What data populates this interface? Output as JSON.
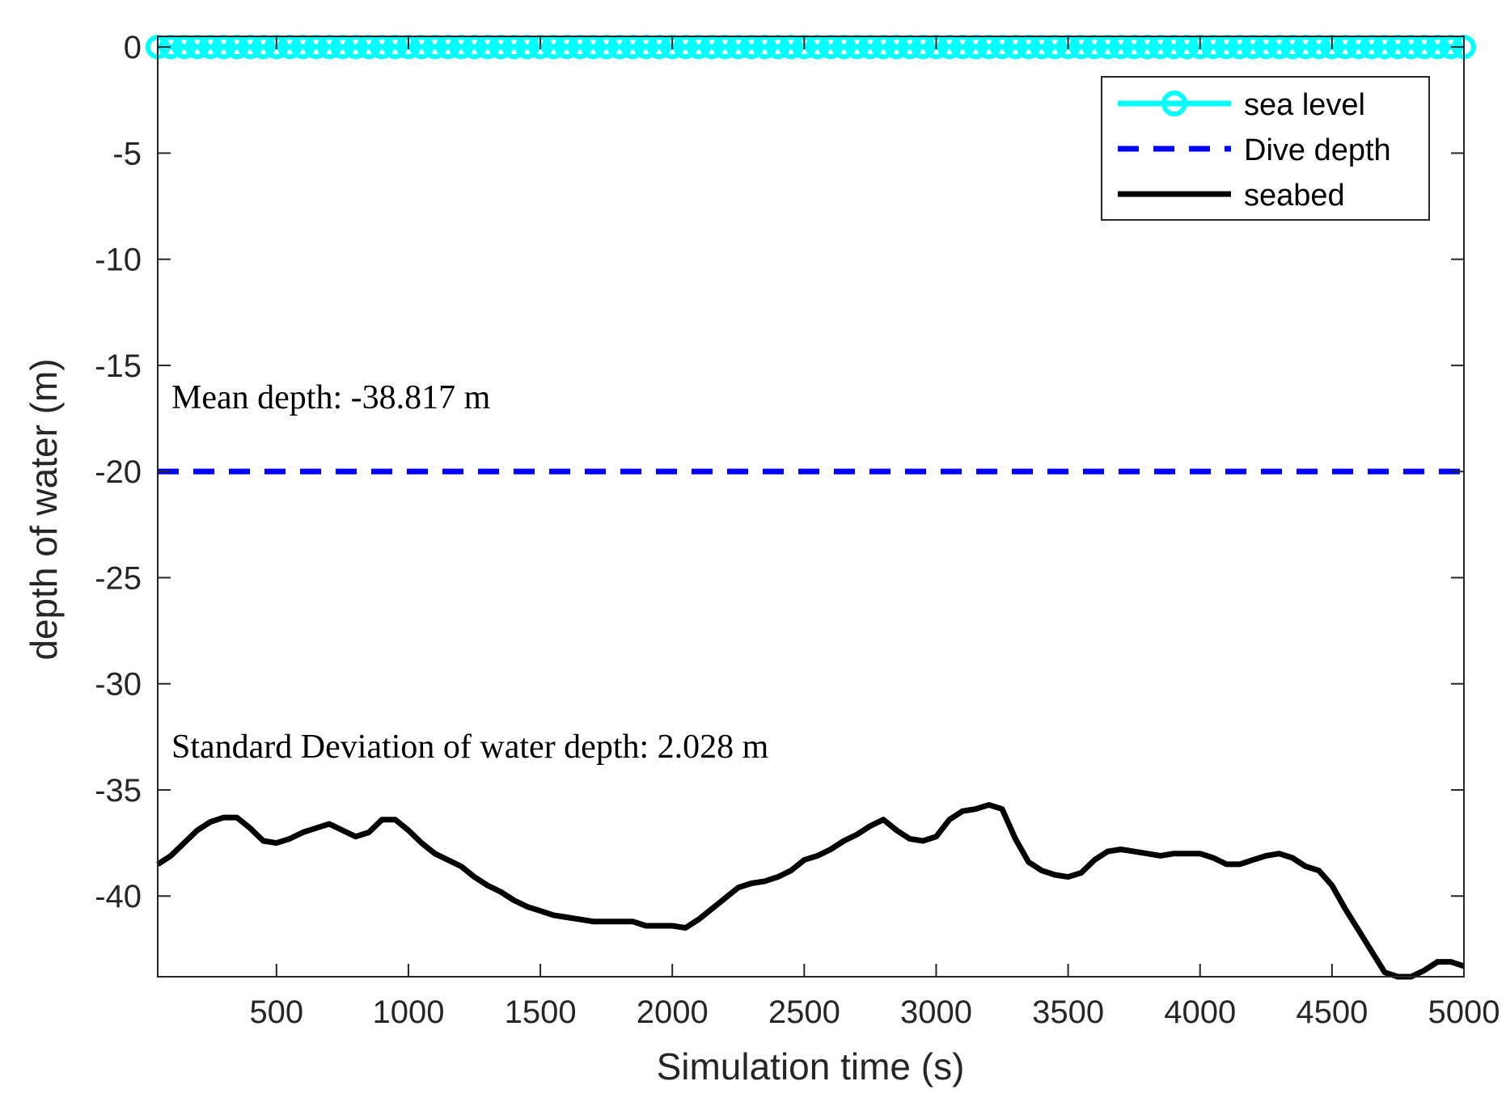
{
  "chart_data": {
    "type": "line",
    "title": "",
    "xlabel": "Simulation time (s)",
    "ylabel": "depth of water (m)",
    "xlim": [
      50,
      5000
    ],
    "ylim": [
      -43.8,
      0.5
    ],
    "xticks": [
      500,
      1000,
      1500,
      2000,
      2500,
      3000,
      3500,
      4000,
      4500,
      5000
    ],
    "xtick_labels": [
      "500",
      "1000",
      "1500",
      "2000",
      "2500",
      "3000",
      "3500",
      "4000",
      "4500",
      "5000"
    ],
    "yticks": [
      0,
      -5,
      -10,
      -15,
      -20,
      -25,
      -30,
      -35,
      -40
    ],
    "ytick_labels": [
      "0",
      "-5",
      "-10",
      "-15",
      "-20",
      "-25",
      "-30",
      "-35",
      "-40"
    ],
    "grid": false,
    "legend_position": "top-right",
    "annotations": [
      {
        "text": "Mean depth: -38.817 m",
        "x": 100,
        "y": -17.3
      },
      {
        "text": "Standard Deviation of water depth: 2.028 m",
        "x": 100,
        "y": -33.7
      }
    ],
    "series": [
      {
        "name": "sea level",
        "color": "#00ffff",
        "style": "solid-circle-markers",
        "x": [
          50,
          100,
          150,
          200,
          250,
          300,
          350,
          400,
          450,
          500,
          550,
          600,
          650,
          700,
          750,
          800,
          850,
          900,
          950,
          1000,
          1050,
          1100,
          1150,
          1200,
          1250,
          1300,
          1350,
          1400,
          1450,
          1500,
          1550,
          1600,
          1650,
          1700,
          1750,
          1800,
          1850,
          1900,
          1950,
          2000,
          2050,
          2100,
          2150,
          2200,
          2250,
          2300,
          2350,
          2400,
          2450,
          2500,
          2550,
          2600,
          2650,
          2700,
          2750,
          2800,
          2850,
          2900,
          2950,
          3000,
          3050,
          3100,
          3150,
          3200,
          3250,
          3300,
          3350,
          3400,
          3450,
          3500,
          3550,
          3600,
          3650,
          3700,
          3750,
          3800,
          3850,
          3900,
          3950,
          4000,
          4050,
          4100,
          4150,
          4200,
          4250,
          4300,
          4350,
          4400,
          4450,
          4500,
          4550,
          4600,
          4650,
          4700,
          4750,
          4800,
          4850,
          4900,
          4950,
          5000
        ],
        "y": [
          0,
          0,
          0,
          0,
          0,
          0,
          0,
          0,
          0,
          0,
          0,
          0,
          0,
          0,
          0,
          0,
          0,
          0,
          0,
          0,
          0,
          0,
          0,
          0,
          0,
          0,
          0,
          0,
          0,
          0,
          0,
          0,
          0,
          0,
          0,
          0,
          0,
          0,
          0,
          0,
          0,
          0,
          0,
          0,
          0,
          0,
          0,
          0,
          0,
          0,
          0,
          0,
          0,
          0,
          0,
          0,
          0,
          0,
          0,
          0,
          0,
          0,
          0,
          0,
          0,
          0,
          0,
          0,
          0,
          0,
          0,
          0,
          0,
          0,
          0,
          0,
          0,
          0,
          0,
          0,
          0,
          0,
          0,
          0,
          0,
          0,
          0,
          0,
          0,
          0,
          0,
          0,
          0,
          0,
          0,
          0,
          0,
          0,
          0,
          0
        ]
      },
      {
        "name": "Dive depth",
        "color": "#0000ff",
        "style": "dashed",
        "x": [
          50,
          5000
        ],
        "y": [
          -20,
          -20
        ]
      },
      {
        "name": "seabed",
        "color": "#000000",
        "style": "solid",
        "x": [
          50,
          100,
          150,
          200,
          250,
          300,
          350,
          400,
          450,
          500,
          550,
          600,
          650,
          700,
          750,
          800,
          850,
          900,
          950,
          1000,
          1050,
          1100,
          1150,
          1200,
          1250,
          1300,
          1350,
          1400,
          1450,
          1500,
          1550,
          1600,
          1650,
          1700,
          1750,
          1800,
          1850,
          1900,
          1950,
          2000,
          2050,
          2100,
          2150,
          2200,
          2250,
          2300,
          2350,
          2400,
          2450,
          2500,
          2550,
          2600,
          2650,
          2700,
          2750,
          2800,
          2850,
          2900,
          2950,
          3000,
          3050,
          3100,
          3150,
          3200,
          3250,
          3300,
          3350,
          3400,
          3450,
          3500,
          3550,
          3600,
          3650,
          3700,
          3750,
          3800,
          3850,
          3900,
          3950,
          4000,
          4050,
          4100,
          4150,
          4200,
          4250,
          4300,
          4350,
          4400,
          4450,
          4500,
          4550,
          4600,
          4650,
          4700,
          4750,
          4800,
          4850,
          4900,
          4950,
          5000
        ],
        "y": [
          -38.5,
          -38.1,
          -37.5,
          -36.9,
          -36.5,
          -36.3,
          -36.3,
          -36.8,
          -37.4,
          -37.5,
          -37.3,
          -37.0,
          -36.8,
          -36.6,
          -36.9,
          -37.2,
          -37.0,
          -36.4,
          -36.4,
          -36.9,
          -37.5,
          -38.0,
          -38.3,
          -38.6,
          -39.1,
          -39.5,
          -39.8,
          -40.2,
          -40.5,
          -40.7,
          -40.9,
          -41.0,
          -41.1,
          -41.2,
          -41.2,
          -41.2,
          -41.2,
          -41.4,
          -41.4,
          -41.4,
          -41.5,
          -41.1,
          -40.6,
          -40.1,
          -39.6,
          -39.4,
          -39.3,
          -39.1,
          -38.8,
          -38.3,
          -38.1,
          -37.8,
          -37.4,
          -37.1,
          -36.7,
          -36.4,
          -36.9,
          -37.3,
          -37.4,
          -37.2,
          -36.4,
          -36.0,
          -35.9,
          -35.7,
          -35.9,
          -37.3,
          -38.4,
          -38.8,
          -39.0,
          -39.1,
          -38.9,
          -38.3,
          -37.9,
          -37.8,
          -37.9,
          -38.0,
          -38.1,
          -38.0,
          -38.0,
          -38.0,
          -38.2,
          -38.5,
          -38.5,
          -38.3,
          -38.1,
          -38.0,
          -38.2,
          -38.6,
          -38.8,
          -39.5,
          -40.6,
          -41.6,
          -42.6,
          -43.6,
          -43.8,
          -43.8,
          -43.5,
          -43.1,
          -43.1,
          -43.3
        ]
      }
    ]
  }
}
